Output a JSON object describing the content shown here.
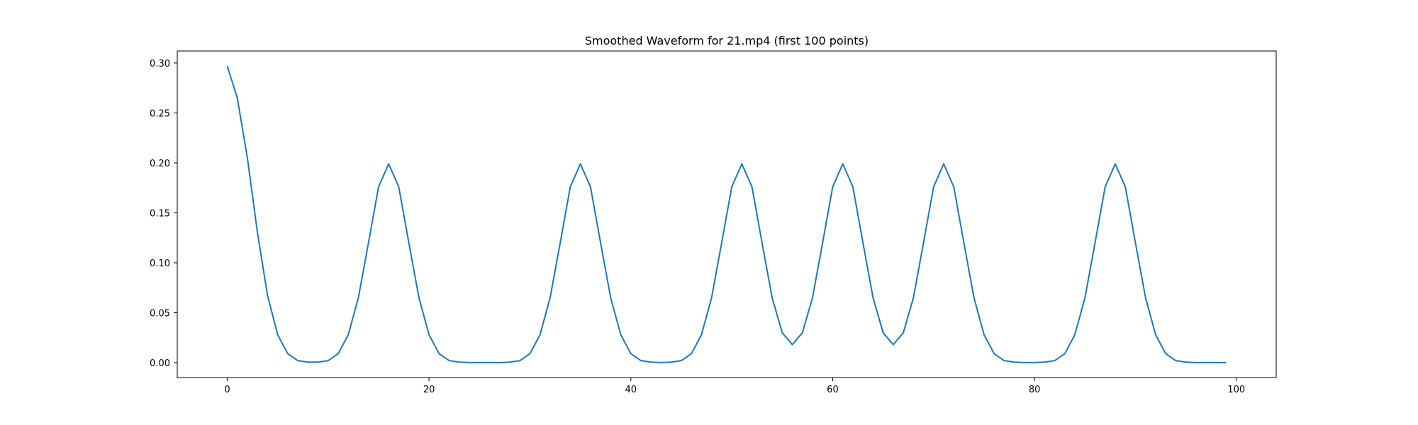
{
  "chart_data": {
    "type": "line",
    "title": "Smoothed Waveform for 21.mp4 (first 100 points)",
    "xlabel": "",
    "ylabel": "",
    "xlim": [
      -4.95,
      103.95
    ],
    "ylim": [
      -0.0149,
      0.312
    ],
    "grid": false,
    "x_ticks": [
      0,
      20,
      40,
      60,
      80,
      100
    ],
    "x_tick_labels": [
      "0",
      "20",
      "40",
      "60",
      "80",
      "100"
    ],
    "y_ticks": [
      0.0,
      0.05,
      0.1,
      0.15,
      0.2,
      0.25,
      0.3
    ],
    "y_tick_labels": [
      "0.00",
      "0.05",
      "0.10",
      "0.15",
      "0.20",
      "0.25",
      "0.30"
    ],
    "series": [
      {
        "color": "#1f77b4",
        "x": [
          0,
          1,
          2,
          3,
          4,
          5,
          6,
          7,
          8,
          9,
          10,
          11,
          12,
          13,
          14,
          15,
          16,
          17,
          18,
          19,
          20,
          21,
          22,
          23,
          24,
          25,
          26,
          27,
          28,
          29,
          30,
          31,
          32,
          33,
          34,
          35,
          36,
          37,
          38,
          39,
          40,
          41,
          42,
          43,
          44,
          45,
          46,
          47,
          48,
          49,
          50,
          51,
          52,
          53,
          54,
          55,
          56,
          57,
          58,
          59,
          60,
          61,
          62,
          63,
          64,
          65,
          66,
          67,
          68,
          69,
          70,
          71,
          72,
          73,
          74,
          75,
          76,
          77,
          78,
          79,
          80,
          81,
          82,
          83,
          84,
          85,
          86,
          87,
          88,
          89,
          90,
          91,
          92,
          93,
          94,
          95,
          96,
          97,
          98,
          99
        ],
        "values": [
          0.297,
          0.265,
          0.205,
          0.13,
          0.067,
          0.028,
          0.009,
          0.002,
          0.0005,
          0.0005,
          0.002,
          0.009,
          0.028,
          0.065,
          0.12,
          0.176,
          0.199,
          0.176,
          0.12,
          0.065,
          0.028,
          0.009,
          0.002,
          0.0005,
          0.0001,
          0.0001,
          0.0001,
          0.0001,
          0.0005,
          0.002,
          0.009,
          0.028,
          0.065,
          0.12,
          0.176,
          0.199,
          0.176,
          0.12,
          0.065,
          0.028,
          0.009,
          0.002,
          0.0005,
          0.0001,
          0.0005,
          0.002,
          0.009,
          0.028,
          0.065,
          0.12,
          0.176,
          0.199,
          0.176,
          0.12,
          0.065,
          0.03,
          0.018,
          0.03,
          0.065,
          0.12,
          0.176,
          0.199,
          0.176,
          0.12,
          0.065,
          0.03,
          0.018,
          0.03,
          0.065,
          0.12,
          0.176,
          0.199,
          0.176,
          0.12,
          0.065,
          0.028,
          0.009,
          0.002,
          0.0005,
          0.0001,
          0.0001,
          0.0005,
          0.002,
          0.009,
          0.028,
          0.065,
          0.12,
          0.176,
          0.199,
          0.176,
          0.12,
          0.065,
          0.028,
          0.009,
          0.002,
          0.0005,
          0.0001,
          0.0001,
          0.0001,
          0.0001
        ]
      }
    ]
  }
}
